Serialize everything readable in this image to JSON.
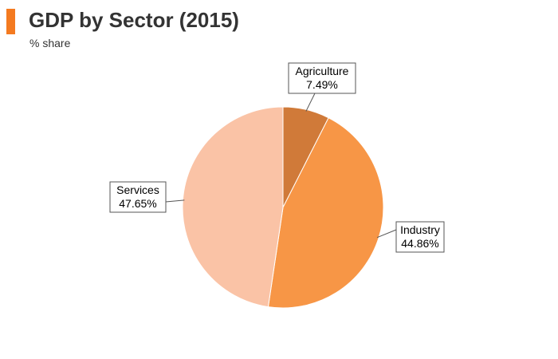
{
  "header": {
    "title": "GDP by Sector (2015)",
    "subtitle": "% share"
  },
  "colors": {
    "accent": "#f47a20"
  },
  "chart_data": {
    "type": "pie",
    "title": "GDP by Sector (2015)",
    "subtitle": "% share",
    "unit": "%",
    "start_angle": "12 o'clock",
    "direction": "clockwise",
    "slices": [
      {
        "label": "Agriculture",
        "value": 7.49,
        "display": "7.49%",
        "color": "#d07a39"
      },
      {
        "label": "Industry",
        "value": 44.86,
        "display": "44.86%",
        "color": "#f79646"
      },
      {
        "label": "Services",
        "value": 47.65,
        "display": "47.65%",
        "color": "#fac3a6"
      }
    ]
  }
}
